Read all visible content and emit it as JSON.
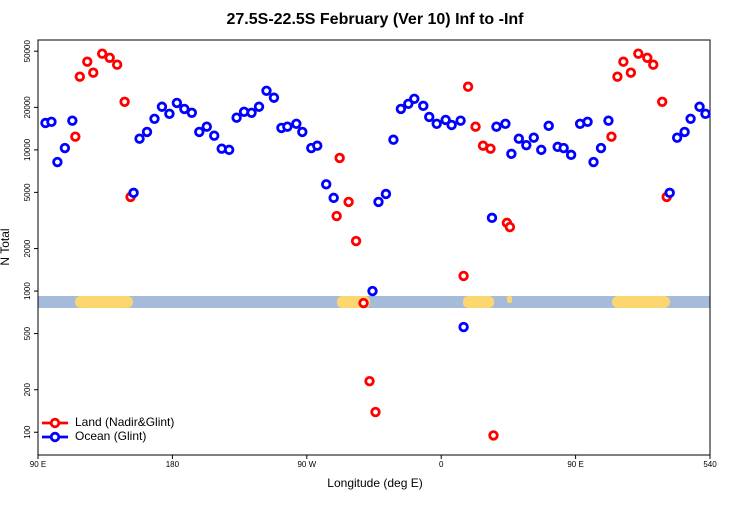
{
  "chart_data": {
    "type": "scatter",
    "title": "27.5S-22.5S February (Ver 10)   Inf to -Inf",
    "xlabel": "Longitude (deg E)",
    "ylabel": "N Total",
    "log_y": true,
    "legend": "lower left",
    "xlim": [
      90,
      540
    ],
    "xticks": [
      {
        "value": 90,
        "label": "90 E"
      },
      180,
      {
        "value": 270,
        "label": "90 W"
      },
      {
        "value": 360,
        "label": "0"
      },
      {
        "value": 450,
        "label": "90 E"
      },
      540
    ],
    "ylim": [
      69,
      60000
    ],
    "yticks": [
      100,
      200,
      500,
      1000,
      2000,
      5000,
      10000,
      20000,
      50000
    ],
    "series": [
      {
        "name": "Land (Nadir&Glint)",
        "color": "#ff0000",
        "x": [
          115,
          118,
          123,
          127,
          133,
          138,
          143,
          148,
          152,
          290,
          292,
          298,
          303,
          308,
          312,
          316,
          375,
          378,
          383,
          388,
          393,
          395,
          404,
          406,
          474,
          478,
          482,
          487,
          492,
          498,
          502,
          508,
          511
        ],
        "values": [
          12400,
          33000,
          42100,
          35200,
          48000,
          44900,
          40100,
          21900,
          4640,
          3400,
          8770,
          4280,
          2260,
          822,
          230,
          139,
          1280,
          28000,
          14600,
          10700,
          10200,
          95,
          3040,
          2840,
          12400,
          33000,
          42100,
          35200,
          48000,
          44900,
          40100,
          21900,
          4640
        ]
      },
      {
        "name": "Ocean (Glint)",
        "color": "#0000ff",
        "x": [
          95,
          99,
          103,
          108,
          113,
          154,
          158,
          163,
          168,
          173,
          178,
          183,
          188,
          193,
          198,
          203,
          208,
          213,
          218,
          223,
          228,
          233,
          238,
          243,
          248,
          253,
          257,
          263,
          267,
          273,
          277,
          283,
          288,
          314,
          318,
          323,
          328,
          333,
          338,
          342,
          348,
          352,
          357,
          363,
          367,
          373,
          375,
          394,
          397,
          403,
          407,
          412,
          417,
          422,
          427,
          432,
          438,
          442,
          447,
          453,
          458,
          462,
          467,
          472,
          513,
          518,
          523,
          527,
          533,
          537
        ],
        "values": [
          15500,
          15800,
          8200,
          10300,
          16100,
          4960,
          12000,
          13400,
          16600,
          20200,
          18000,
          21500,
          19500,
          18300,
          13400,
          14600,
          12600,
          10200,
          10000,
          16900,
          18600,
          18300,
          20200,
          26200,
          23400,
          14300,
          14600,
          15300,
          13400,
          10300,
          10700,
          5700,
          4570,
          1000,
          4280,
          4870,
          11800,
          19500,
          21200,
          23000,
          20500,
          17100,
          15300,
          16300,
          15000,
          16100,
          556,
          3300,
          14600,
          15300,
          9370,
          12000,
          10800,
          12200,
          10000,
          14800,
          10500,
          10300,
          9220,
          15300,
          15800,
          8200,
          10300,
          16100,
          4960,
          12200,
          13400,
          16600,
          20200,
          18000
        ]
      }
    ]
  }
}
